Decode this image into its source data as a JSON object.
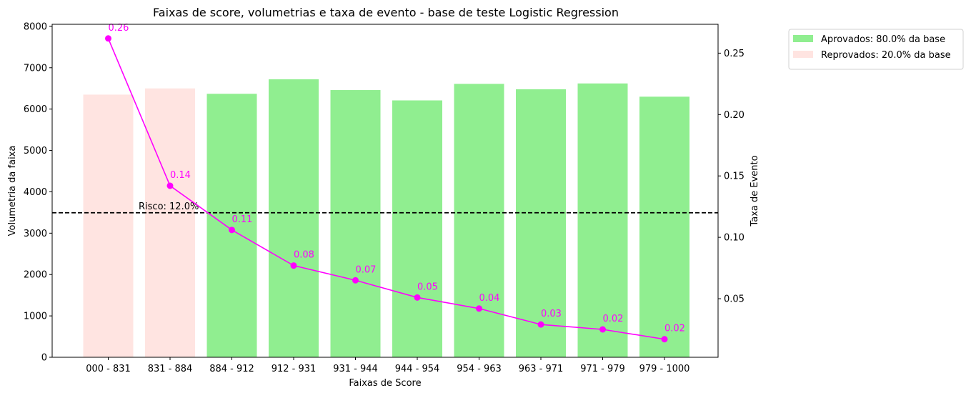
{
  "chart_data": {
    "type": "bar",
    "title": "Faixas de score, volumetrias e taxa de evento - base de teste Logistic Regression",
    "xlabel": "Faixas de Score",
    "ylabel": "Volumetria da faixa",
    "ylabel_right": "Taxa de Evento",
    "categories": [
      "000 - 831",
      "831 - 884",
      "884 - 912",
      "912 - 931",
      "931 - 944",
      "944 - 954",
      "954 - 963",
      "963 - 971",
      "971 - 979",
      "979 - 1000"
    ],
    "ylim": [
      0,
      8050
    ],
    "yticks": [
      0,
      1000,
      2000,
      3000,
      4000,
      5000,
      6000,
      7000,
      8000
    ],
    "ylim_right": [
      0.0023,
      0.2735
    ],
    "yticks_right": [
      "0.05",
      "0.10",
      "0.15",
      "0.20",
      "0.25"
    ],
    "series": [
      {
        "name": "Aprovados:   80.0% da base",
        "type": "bar",
        "color": "#90ee90",
        "values": [
          null,
          null,
          6370,
          6720,
          6460,
          6210,
          6610,
          6480,
          6620,
          6300
        ]
      },
      {
        "name": "Reprovados: 20.0% da base",
        "type": "bar",
        "color": "#ffe4e1",
        "values": [
          6350,
          6500,
          null,
          null,
          null,
          null,
          null,
          null,
          null,
          null
        ]
      },
      {
        "type": "line",
        "axis": "right",
        "color": "#ff00ff",
        "values": [
          0.262,
          0.142,
          0.106,
          0.077,
          0.065,
          0.051,
          0.042,
          0.029,
          0.025,
          0.017
        ],
        "labels": [
          "0.26",
          "0.14",
          "0.11",
          "0.08",
          "0.07",
          "0.05",
          "0.04",
          "0.03",
          "0.02",
          "0.02"
        ]
      }
    ],
    "reference_line": {
      "axis": "right",
      "value": 0.12,
      "label": "Risco: 12.0%",
      "style": "dashed",
      "color": "#000000"
    },
    "legend": {
      "position": "outside-right"
    },
    "grid": false
  }
}
